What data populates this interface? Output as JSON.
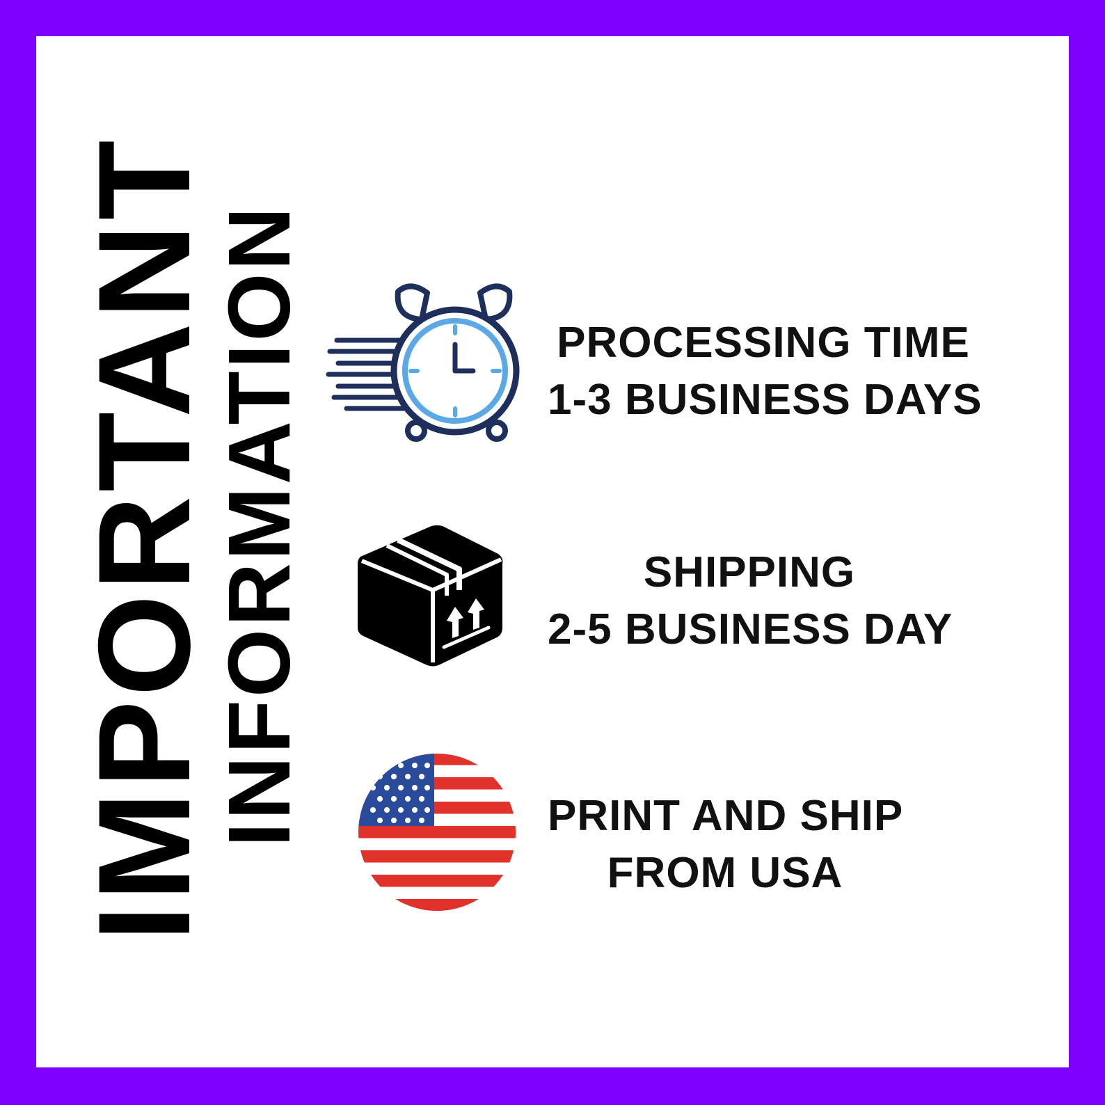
{
  "title": {
    "main": "IMPORTANT",
    "sub": "INFORMATION"
  },
  "items": [
    {
      "icon": "alarm-clock-icon",
      "line1": "PROCESSING TIME",
      "line2": "1-3 BUSINESS DAYS"
    },
    {
      "icon": "package-box-icon",
      "line1": "SHIPPING",
      "line2": "2-5 BUSINESS DAY"
    },
    {
      "icon": "usa-flag-icon",
      "line1": "PRINT AND SHIP",
      "line2": "FROM USA"
    }
  ],
  "colors": {
    "border": "#8000ff",
    "background": "#ffffff",
    "text": "#000000",
    "clock_dark": "#1e2f5c",
    "clock_light": "#5aa8e6",
    "flag_red": "#e0312b",
    "flag_blue": "#2a4a9b"
  }
}
